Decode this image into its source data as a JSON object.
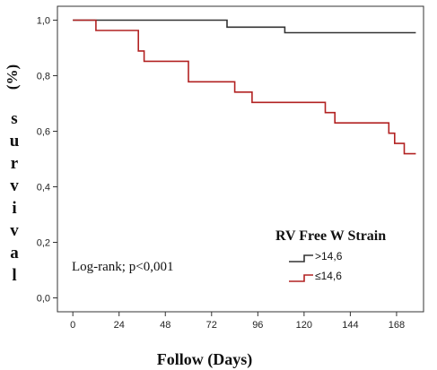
{
  "chart_data": {
    "type": "line",
    "step": true,
    "xlabel": "Follow (Days)",
    "ylabel": "survival (%)",
    "ylabel_paren": "(%)",
    "ylabel_letters": [
      "s",
      "u",
      "r",
      "v",
      "i",
      "v",
      "a",
      "l"
    ],
    "xlim": [
      -8,
      182
    ],
    "ylim": [
      -0.05,
      1.05
    ],
    "x_ticks": [
      0,
      24,
      48,
      72,
      96,
      120,
      144,
      168
    ],
    "x_tick_labels": [
      "0",
      "24",
      "48",
      "72",
      "96",
      "120",
      "144",
      "168"
    ],
    "y_ticks": [
      0.0,
      0.2,
      0.4,
      0.6,
      0.8,
      1.0
    ],
    "y_tick_labels": [
      "0,0",
      "0,2",
      "0,4",
      "0,6",
      "0,8",
      "1,0"
    ],
    "grid": false,
    "annotation": "Log-rank; p<0,001",
    "legend": {
      "title": "RV Free W Strain",
      "placement": "bottom-right",
      "entries": [
        ">14,6",
        "≤14,6"
      ]
    },
    "series": [
      {
        "name": ">14,6",
        "color": "#333333",
        "points": [
          [
            0,
            1.0
          ],
          [
            80,
            1.0
          ],
          [
            80,
            0.975
          ],
          [
            110,
            0.975
          ],
          [
            110,
            0.955
          ],
          [
            178,
            0.955
          ]
        ]
      },
      {
        "name": "≤14,6",
        "color": "#b22222",
        "points": [
          [
            0,
            1.0
          ],
          [
            12,
            1.0
          ],
          [
            12,
            0.963
          ],
          [
            34,
            0.963
          ],
          [
            34,
            0.889
          ],
          [
            37,
            0.889
          ],
          [
            37,
            0.852
          ],
          [
            60,
            0.852
          ],
          [
            60,
            0.778
          ],
          [
            84,
            0.778
          ],
          [
            84,
            0.741
          ],
          [
            93,
            0.741
          ],
          [
            93,
            0.704
          ],
          [
            131,
            0.704
          ],
          [
            131,
            0.667
          ],
          [
            136,
            0.667
          ],
          [
            136,
            0.63
          ],
          [
            164,
            0.63
          ],
          [
            164,
            0.593
          ],
          [
            167,
            0.593
          ],
          [
            167,
            0.556
          ],
          [
            172,
            0.556
          ],
          [
            172,
            0.519
          ],
          [
            178,
            0.519
          ]
        ]
      }
    ]
  }
}
